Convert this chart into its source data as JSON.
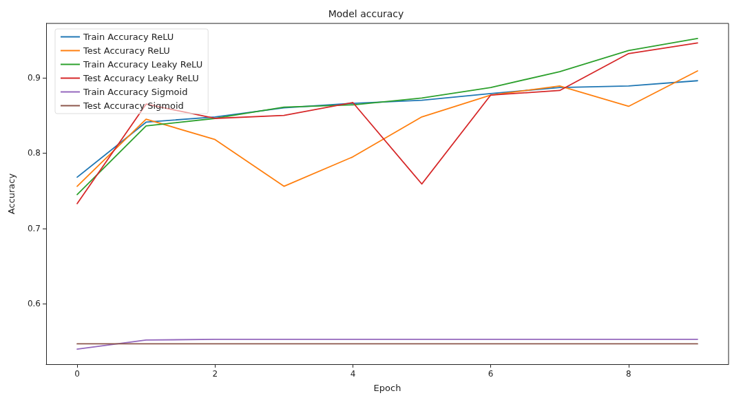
{
  "chart_data": {
    "type": "line",
    "title": "Model accuracy",
    "xlabel": "Epoch",
    "ylabel": "Accuracy",
    "x": [
      0,
      1,
      2,
      3,
      4,
      5,
      6,
      7,
      8,
      9
    ],
    "xlim": [
      -0.45,
      9.45
    ],
    "xticks": [
      0,
      2,
      4,
      6,
      8
    ],
    "ylim": [
      0.52,
      0.972
    ],
    "yticks": [
      0.6,
      0.7,
      0.8,
      0.9
    ],
    "grid": false,
    "legend": "top left",
    "marker": "none",
    "line_style": "solid",
    "series": [
      {
        "name": "Train Accuracy ReLU",
        "color": "#1f77b4",
        "values": [
          0.768,
          0.841,
          0.848,
          0.86,
          0.866,
          0.87,
          0.879,
          0.887,
          0.889,
          0.896
        ]
      },
      {
        "name": "Test Accuracy ReLU",
        "color": "#ff7f0e",
        "values": [
          0.756,
          0.845,
          0.818,
          0.756,
          0.795,
          0.848,
          0.877,
          0.889,
          0.862,
          0.909
        ]
      },
      {
        "name": "Train Accuracy Leaky ReLU",
        "color": "#2ca02c",
        "values": [
          0.745,
          0.836,
          0.846,
          0.861,
          0.864,
          0.873,
          0.887,
          0.908,
          0.936,
          0.952
        ]
      },
      {
        "name": "Test Accuracy Leaky ReLU",
        "color": "#d62728",
        "values": [
          0.733,
          0.865,
          0.846,
          0.85,
          0.867,
          0.759,
          0.877,
          0.883,
          0.932,
          0.946
        ]
      },
      {
        "name": "Train Accuracy Sigmoid",
        "color": "#9467bd",
        "values": [
          0.54,
          0.552,
          0.553,
          0.553,
          0.553,
          0.553,
          0.553,
          0.553,
          0.553,
          0.553
        ]
      },
      {
        "name": "Test Accuracy Sigmoid",
        "color": "#8c564b",
        "values": [
          0.547,
          0.547,
          0.547,
          0.547,
          0.547,
          0.547,
          0.547,
          0.547,
          0.547,
          0.547
        ]
      }
    ]
  }
}
